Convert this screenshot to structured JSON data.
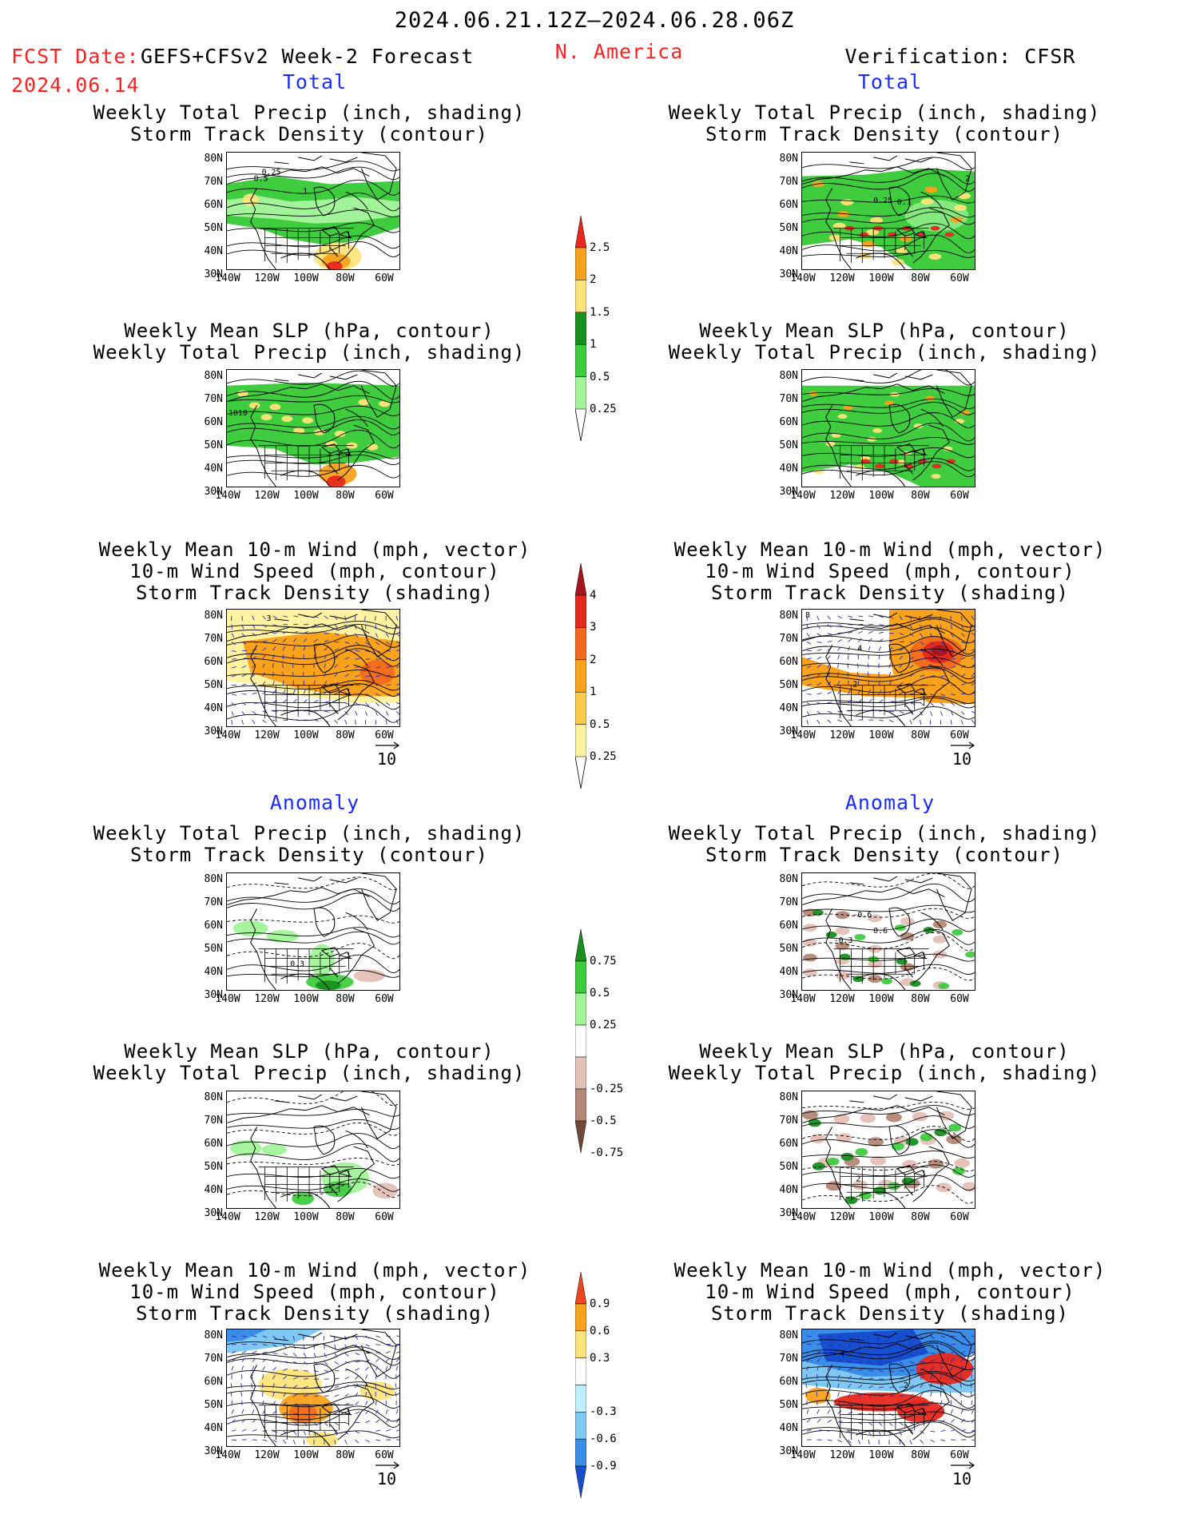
{
  "header": {
    "date_range": "2024.06.21.12Z–2024.06.28.06Z",
    "fcst_label": "FCST Date:",
    "fcst_model": "GEFS+CFSv2 Week-2 Forecast",
    "fcst_date": "2024.06.14",
    "region": "N. America",
    "verification": "Verification: CFSR"
  },
  "sections": {
    "total": "Total",
    "anomaly": "Anomaly"
  },
  "panel_titles": {
    "precip_storm": [
      "Weekly Total Precip (inch, shading)",
      "Storm Track Density (contour)"
    ],
    "slp_precip": [
      "Weekly Mean SLP (hPa, contour)",
      "Weekly Total Precip (inch, shading)"
    ],
    "wind_storm": [
      "Weekly Mean 10-m Wind (mph, vector)",
      "10-m Wind Speed (mph, contour)",
      "Storm Track Density (shading)"
    ]
  },
  "axes": {
    "lat_labels": [
      "80N",
      "70N",
      "60N",
      "50N",
      "40N",
      "30N"
    ],
    "lon_labels": [
      "140W",
      "120W",
      "100W",
      "80W",
      "60W"
    ]
  },
  "vector_ref": "10",
  "map_labels": {
    "m1": [
      "0.25",
      "0.5",
      "1"
    ],
    "m2": [
      "2",
      "0.25",
      "0.1"
    ],
    "m3": [
      "1010"
    ],
    "m5": [
      "3"
    ],
    "m6": [
      "8",
      "2",
      "4"
    ],
    "m7": [
      "0.3"
    ],
    "m8": [
      "-0.6",
      "0.6",
      "-0.3"
    ],
    "m10": [
      "2"
    ],
    "m12": [
      "4",
      "2"
    ]
  },
  "colorbars": {
    "precip_total": {
      "labels": [
        "2.5",
        "2",
        "1.5",
        "1",
        "0.5",
        "0.25"
      ],
      "colors": [
        "#e8281e",
        "#f7a21c",
        "#fde47a",
        "#17901d",
        "#3fcc3f",
        "#a2f39a"
      ]
    },
    "storm_total": {
      "labels": [
        "4",
        "3",
        "2",
        "1",
        "0.5",
        "0.25"
      ],
      "colors": [
        "#a8141c",
        "#e4281c",
        "#f26a1f",
        "#f9a21c",
        "#fccb4a",
        "#fff2a0"
      ]
    },
    "precip_anom": {
      "labels": [
        "0.75",
        "0.5",
        "0.25",
        "-0.25",
        "-0.5",
        "-0.75"
      ],
      "colors": [
        "#17901d",
        "#3fcc3f",
        "#a2f39a",
        "#ffffff",
        "#e4c0b6",
        "#b48878",
        "#734838"
      ]
    },
    "storm_anom": {
      "labels": [
        "0.9",
        "0.6",
        "0.3",
        "-0.3",
        "-0.6",
        "-0.9"
      ],
      "colors": [
        "#f0461e",
        "#f9a21c",
        "#fde47a",
        "#ffffff",
        "#bff0fa",
        "#7fc8f2",
        "#3a8ee8",
        "#1650d0"
      ]
    }
  },
  "colors": {
    "precip_light": "#a2f39a",
    "precip_mid": "#3fcc3f",
    "precip_dark": "#17901d",
    "precip_yellow": "#fde47a",
    "precip_orange": "#f7a21c",
    "precip_red": "#e8281e",
    "storm_light": "#fff2a0",
    "storm_mid": "#f9a21c",
    "storm_high": "#f26a1f",
    "storm_red": "#e4281c",
    "dry_light": "#e4c0b6",
    "dry_dark": "#b48878",
    "anom_blue_dark": "#1650d0",
    "anom_blue": "#3a8ee8",
    "anom_blue_light": "#7fc8f2",
    "wind_vector": "#2a2ab0"
  }
}
